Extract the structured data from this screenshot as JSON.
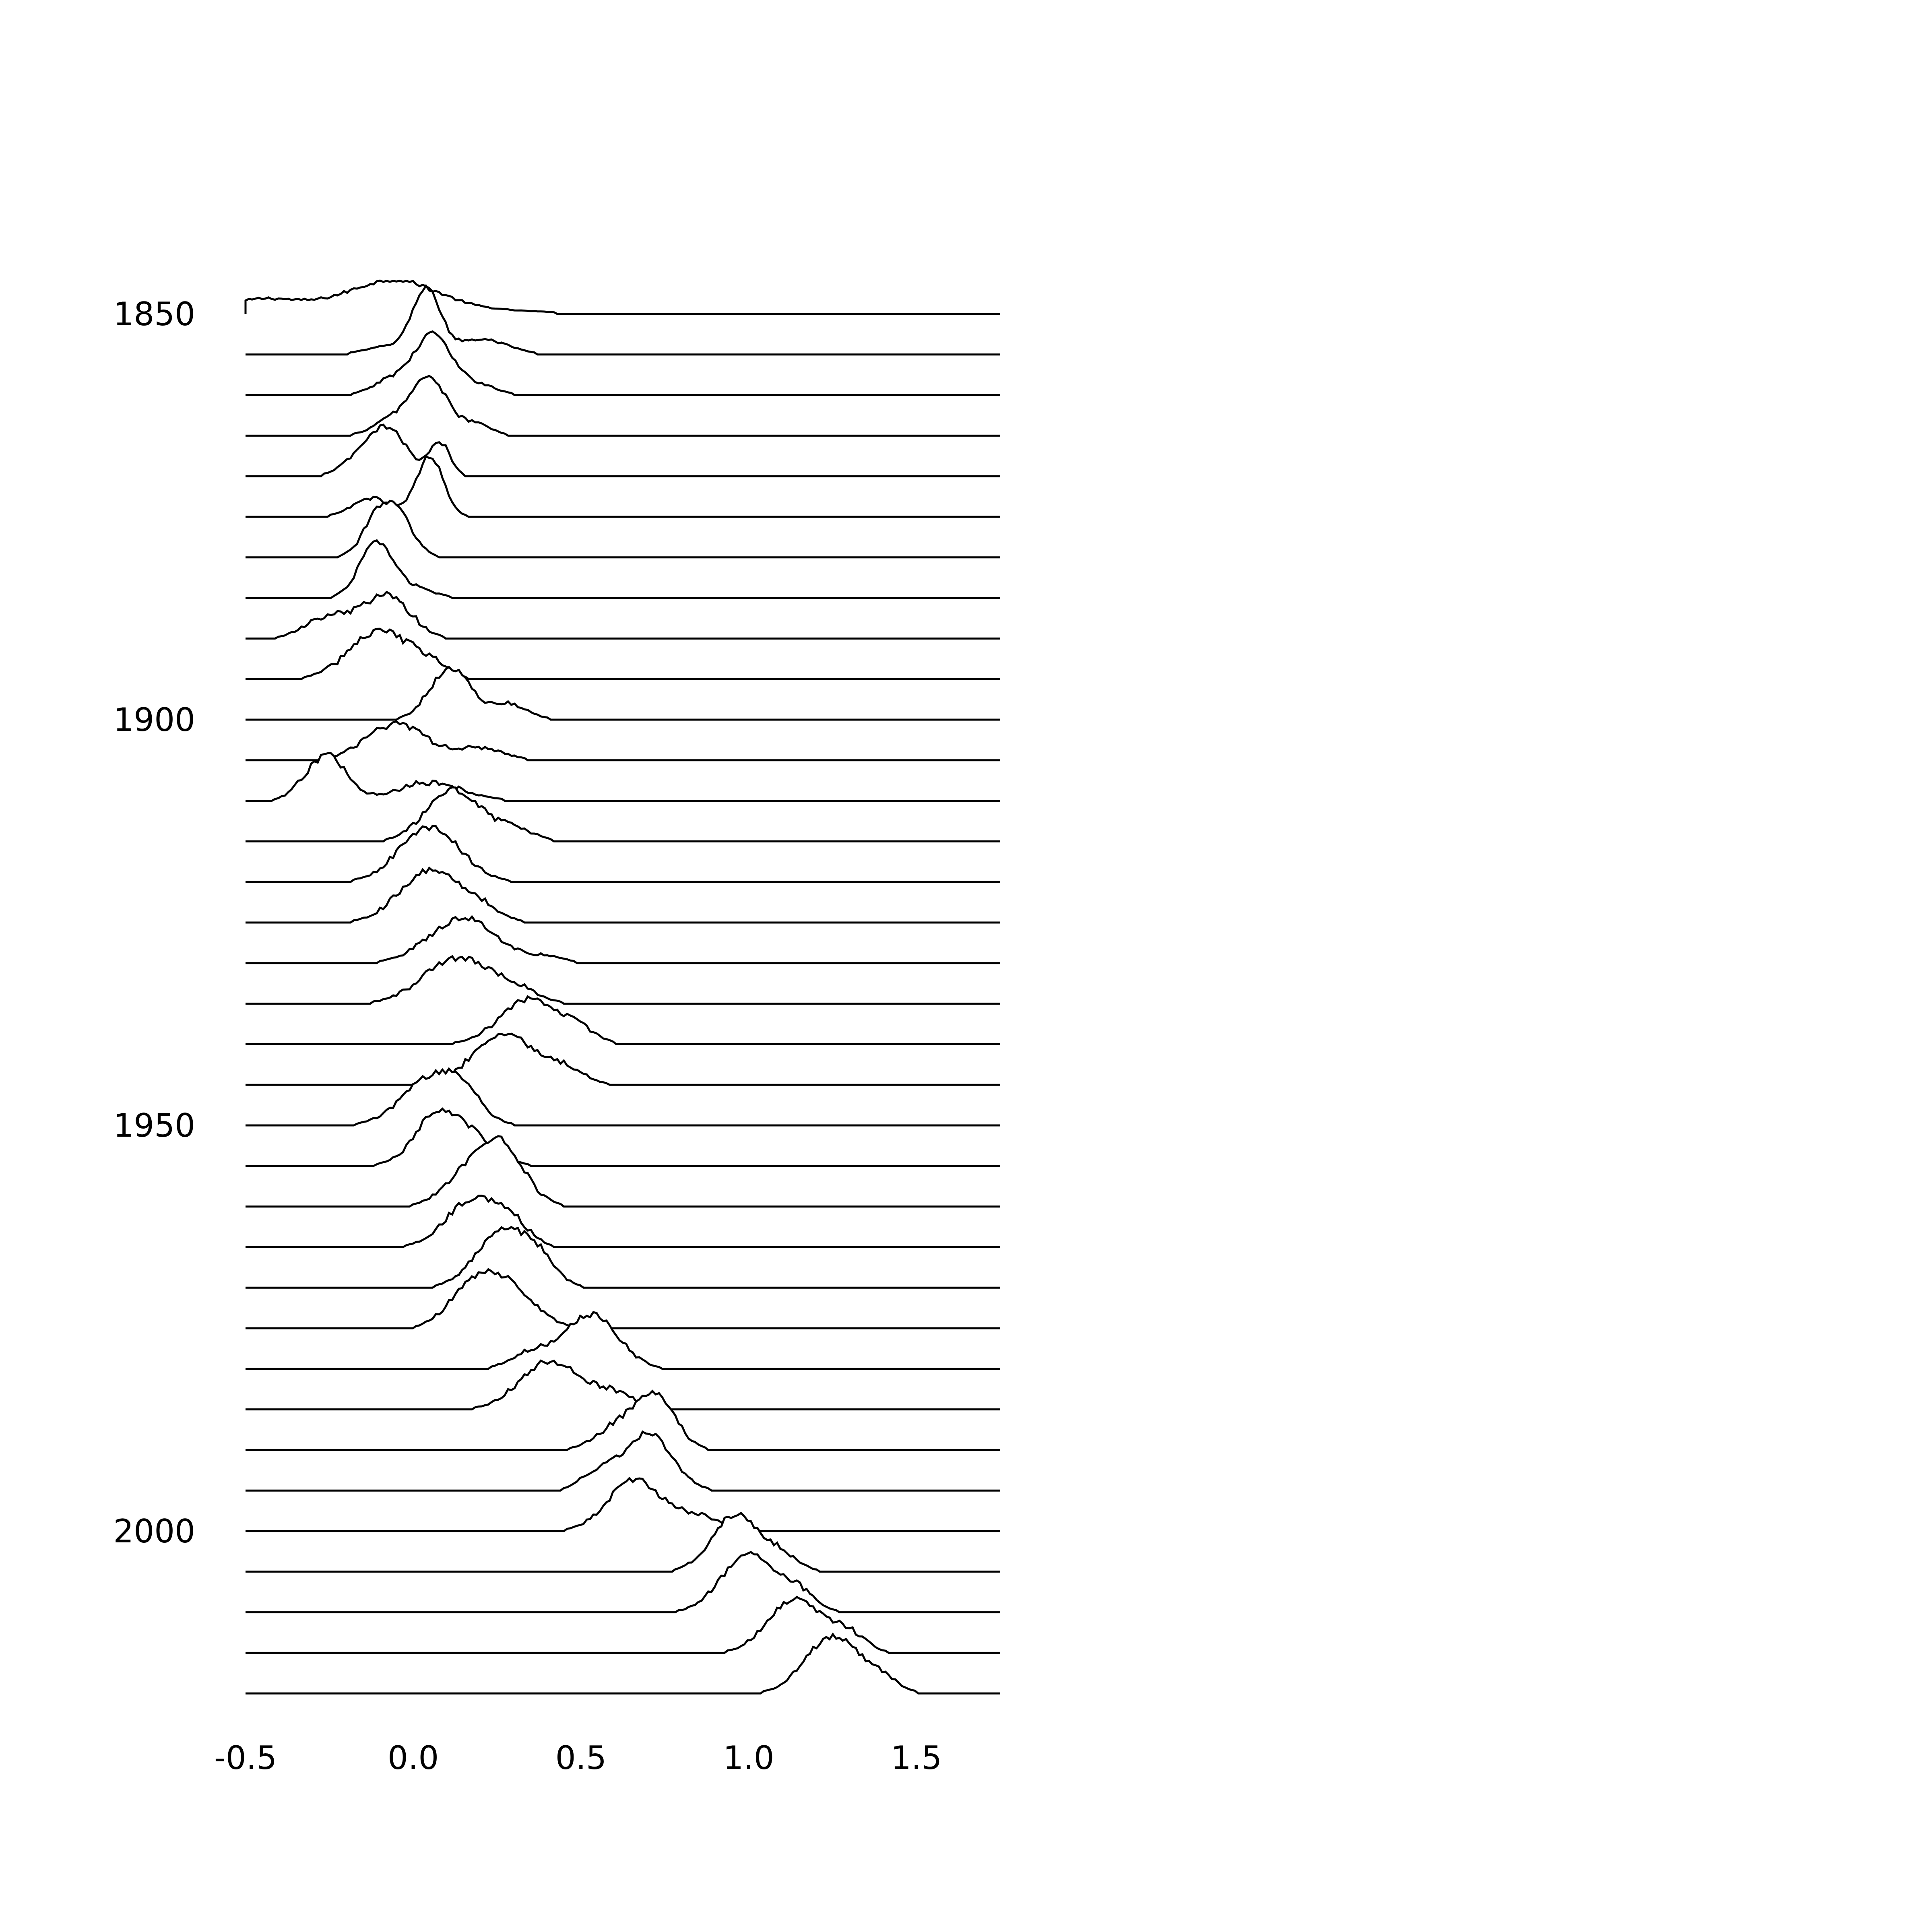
{
  "chart_data": {
    "type": "ridgeline",
    "title": "",
    "xlabel": "",
    "ylabel": "",
    "xlim": [
      -0.5,
      1.75
    ],
    "x_ticks": [
      {
        "value": -0.5,
        "label": "-0.5"
      },
      {
        "value": 0.0,
        "label": "0.0"
      },
      {
        "value": 0.5,
        "label": "0.5"
      },
      {
        "value": 1.0,
        "label": "1.0"
      },
      {
        "value": 1.5,
        "label": "1.5"
      }
    ],
    "y_ticks": [
      {
        "value": 1850,
        "label": "1850"
      },
      {
        "value": 1900,
        "label": "1900"
      },
      {
        "value": 1950,
        "label": "1950"
      },
      {
        "value": 2000,
        "label": "2000"
      }
    ],
    "grid": false,
    "line_color": "#000000",
    "background": "#ffffff",
    "rows": [
      {
        "year": 1850,
        "peaks": [
          [
            -0.2,
            0.33,
            0.18
          ],
          [
            -0.45,
            0.08,
            0.12
          ],
          [
            -0.05,
            0.12,
            0.4
          ]
        ],
        "noise": 0.03
      },
      {
        "year": 1855,
        "peaks": [
          [
            0.04,
            0.04,
            1.0
          ],
          [
            0.2,
            0.08,
            0.25
          ],
          [
            -0.05,
            0.08,
            0.15
          ]
        ],
        "noise": 0.04
      },
      {
        "year": 1860,
        "peaks": [
          [
            0.06,
            0.05,
            0.95
          ],
          [
            -0.05,
            0.06,
            0.3
          ],
          [
            0.18,
            0.06,
            0.2
          ]
        ],
        "noise": 0.04
      },
      {
        "year": 1865,
        "peaks": [
          [
            0.05,
            0.05,
            0.9
          ],
          [
            -0.05,
            0.06,
            0.3
          ],
          [
            0.18,
            0.05,
            0.2
          ]
        ],
        "noise": 0.04
      },
      {
        "year": 1870,
        "peaks": [
          [
            -0.08,
            0.06,
            0.8
          ],
          [
            0.08,
            0.03,
            0.55
          ],
          [
            -0.18,
            0.05,
            0.15
          ]
        ],
        "noise": 0.04
      },
      {
        "year": 1875,
        "peaks": [
          [
            0.05,
            0.04,
            1.0
          ],
          [
            -0.12,
            0.06,
            0.3
          ]
        ],
        "noise": 0.04
      },
      {
        "year": 1880,
        "peaks": [
          [
            -0.09,
            0.05,
            0.85
          ],
          [
            -0.02,
            0.04,
            0.3
          ]
        ],
        "noise": 0.05
      },
      {
        "year": 1885,
        "peaks": [
          [
            -0.11,
            0.05,
            0.9
          ],
          [
            0.0,
            0.06,
            0.15
          ]
        ],
        "noise": 0.04
      },
      {
        "year": 1890,
        "peaks": [
          [
            -0.08,
            0.07,
            0.7
          ],
          [
            -0.25,
            0.07,
            0.35
          ]
        ],
        "noise": 0.06
      },
      {
        "year": 1895,
        "peaks": [
          [
            -0.1,
            0.09,
            0.8
          ],
          [
            0.05,
            0.05,
            0.2
          ]
        ],
        "noise": 0.06
      },
      {
        "year": 1900,
        "peaks": [
          [
            0.11,
            0.06,
            0.85
          ],
          [
            0.28,
            0.06,
            0.25
          ]
        ],
        "noise": 0.05
      },
      {
        "year": 1905,
        "peaks": [
          [
            -0.05,
            0.09,
            0.6
          ],
          [
            0.2,
            0.07,
            0.2
          ]
        ],
        "noise": 0.05
      },
      {
        "year": 1910,
        "peaks": [
          [
            -0.26,
            0.06,
            0.75
          ],
          [
            0.05,
            0.1,
            0.3
          ]
        ],
        "noise": 0.06
      },
      {
        "year": 1915,
        "peaks": [
          [
            0.12,
            0.08,
            0.85
          ],
          [
            0.3,
            0.06,
            0.2
          ]
        ],
        "noise": 0.05
      },
      {
        "year": 1920,
        "peaks": [
          [
            0.05,
            0.09,
            0.9
          ]
        ],
        "noise": 0.05
      },
      {
        "year": 1925,
        "peaks": [
          [
            0.05,
            0.09,
            0.85
          ],
          [
            0.2,
            0.06,
            0.2
          ]
        ],
        "noise": 0.05
      },
      {
        "year": 1930,
        "peaks": [
          [
            0.15,
            0.1,
            0.75
          ],
          [
            0.4,
            0.05,
            0.1
          ]
        ],
        "noise": 0.05
      },
      {
        "year": 1935,
        "peaks": [
          [
            0.13,
            0.1,
            0.75
          ],
          [
            0.3,
            0.07,
            0.2
          ]
        ],
        "noise": 0.05
      },
      {
        "year": 1940,
        "peaks": [
          [
            0.35,
            0.09,
            0.75
          ],
          [
            0.5,
            0.05,
            0.15
          ]
        ],
        "noise": 0.05
      },
      {
        "year": 1945,
        "peaks": [
          [
            0.27,
            0.09,
            0.85
          ],
          [
            0.45,
            0.06,
            0.25
          ]
        ],
        "noise": 0.05
      },
      {
        "year": 1950,
        "peaks": [
          [
            0.06,
            0.09,
            0.8
          ],
          [
            0.15,
            0.05,
            0.3
          ]
        ],
        "noise": 0.05
      },
      {
        "year": 1955,
        "peaks": [
          [
            0.12,
            0.09,
            0.75
          ],
          [
            0.05,
            0.05,
            0.3
          ]
        ],
        "noise": 0.05
      },
      {
        "year": 1960,
        "peaks": [
          [
            0.26,
            0.07,
            1.0
          ],
          [
            0.15,
            0.07,
            0.4
          ]
        ],
        "noise": 0.05
      },
      {
        "year": 1965,
        "peaks": [
          [
            0.18,
            0.08,
            0.8
          ],
          [
            0.3,
            0.05,
            0.3
          ]
        ],
        "noise": 0.05
      },
      {
        "year": 1970,
        "peaks": [
          [
            0.27,
            0.08,
            0.95
          ],
          [
            0.38,
            0.05,
            0.3
          ]
        ],
        "noise": 0.05
      },
      {
        "year": 1975,
        "peaks": [
          [
            0.25,
            0.09,
            0.85
          ],
          [
            0.15,
            0.06,
            0.25
          ]
        ],
        "noise": 0.05
      },
      {
        "year": 1980,
        "peaks": [
          [
            0.53,
            0.08,
            0.9
          ],
          [
            0.35,
            0.06,
            0.25
          ]
        ],
        "noise": 0.05
      },
      {
        "year": 1985,
        "peaks": [
          [
            0.41,
            0.09,
            0.8
          ],
          [
            0.6,
            0.06,
            0.25
          ]
        ],
        "noise": 0.05
      },
      {
        "year": 1990,
        "peaks": [
          [
            0.72,
            0.06,
            0.9
          ],
          [
            0.6,
            0.06,
            0.35
          ]
        ],
        "noise": 0.05
      },
      {
        "year": 1995,
        "peaks": [
          [
            0.7,
            0.07,
            0.95
          ],
          [
            0.55,
            0.05,
            0.3
          ]
        ],
        "noise": 0.05
      },
      {
        "year": 2000,
        "peaks": [
          [
            0.66,
            0.08,
            0.85
          ],
          [
            0.85,
            0.06,
            0.25
          ]
        ],
        "noise": 0.05
      },
      {
        "year": 2005,
        "peaks": [
          [
            0.96,
            0.07,
            0.95
          ],
          [
            1.1,
            0.05,
            0.25
          ]
        ],
        "noise": 0.05
      },
      {
        "year": 2010,
        "peaks": [
          [
            1.0,
            0.08,
            0.95
          ],
          [
            1.15,
            0.05,
            0.3
          ]
        ],
        "noise": 0.05
      },
      {
        "year": 2015,
        "peaks": [
          [
            1.14,
            0.08,
            0.9
          ],
          [
            1.3,
            0.05,
            0.3
          ]
        ],
        "noise": 0.05
      },
      {
        "year": 2020,
        "peaks": [
          [
            1.25,
            0.08,
            0.95
          ],
          [
            1.4,
            0.05,
            0.2
          ]
        ],
        "noise": 0.05
      }
    ]
  }
}
